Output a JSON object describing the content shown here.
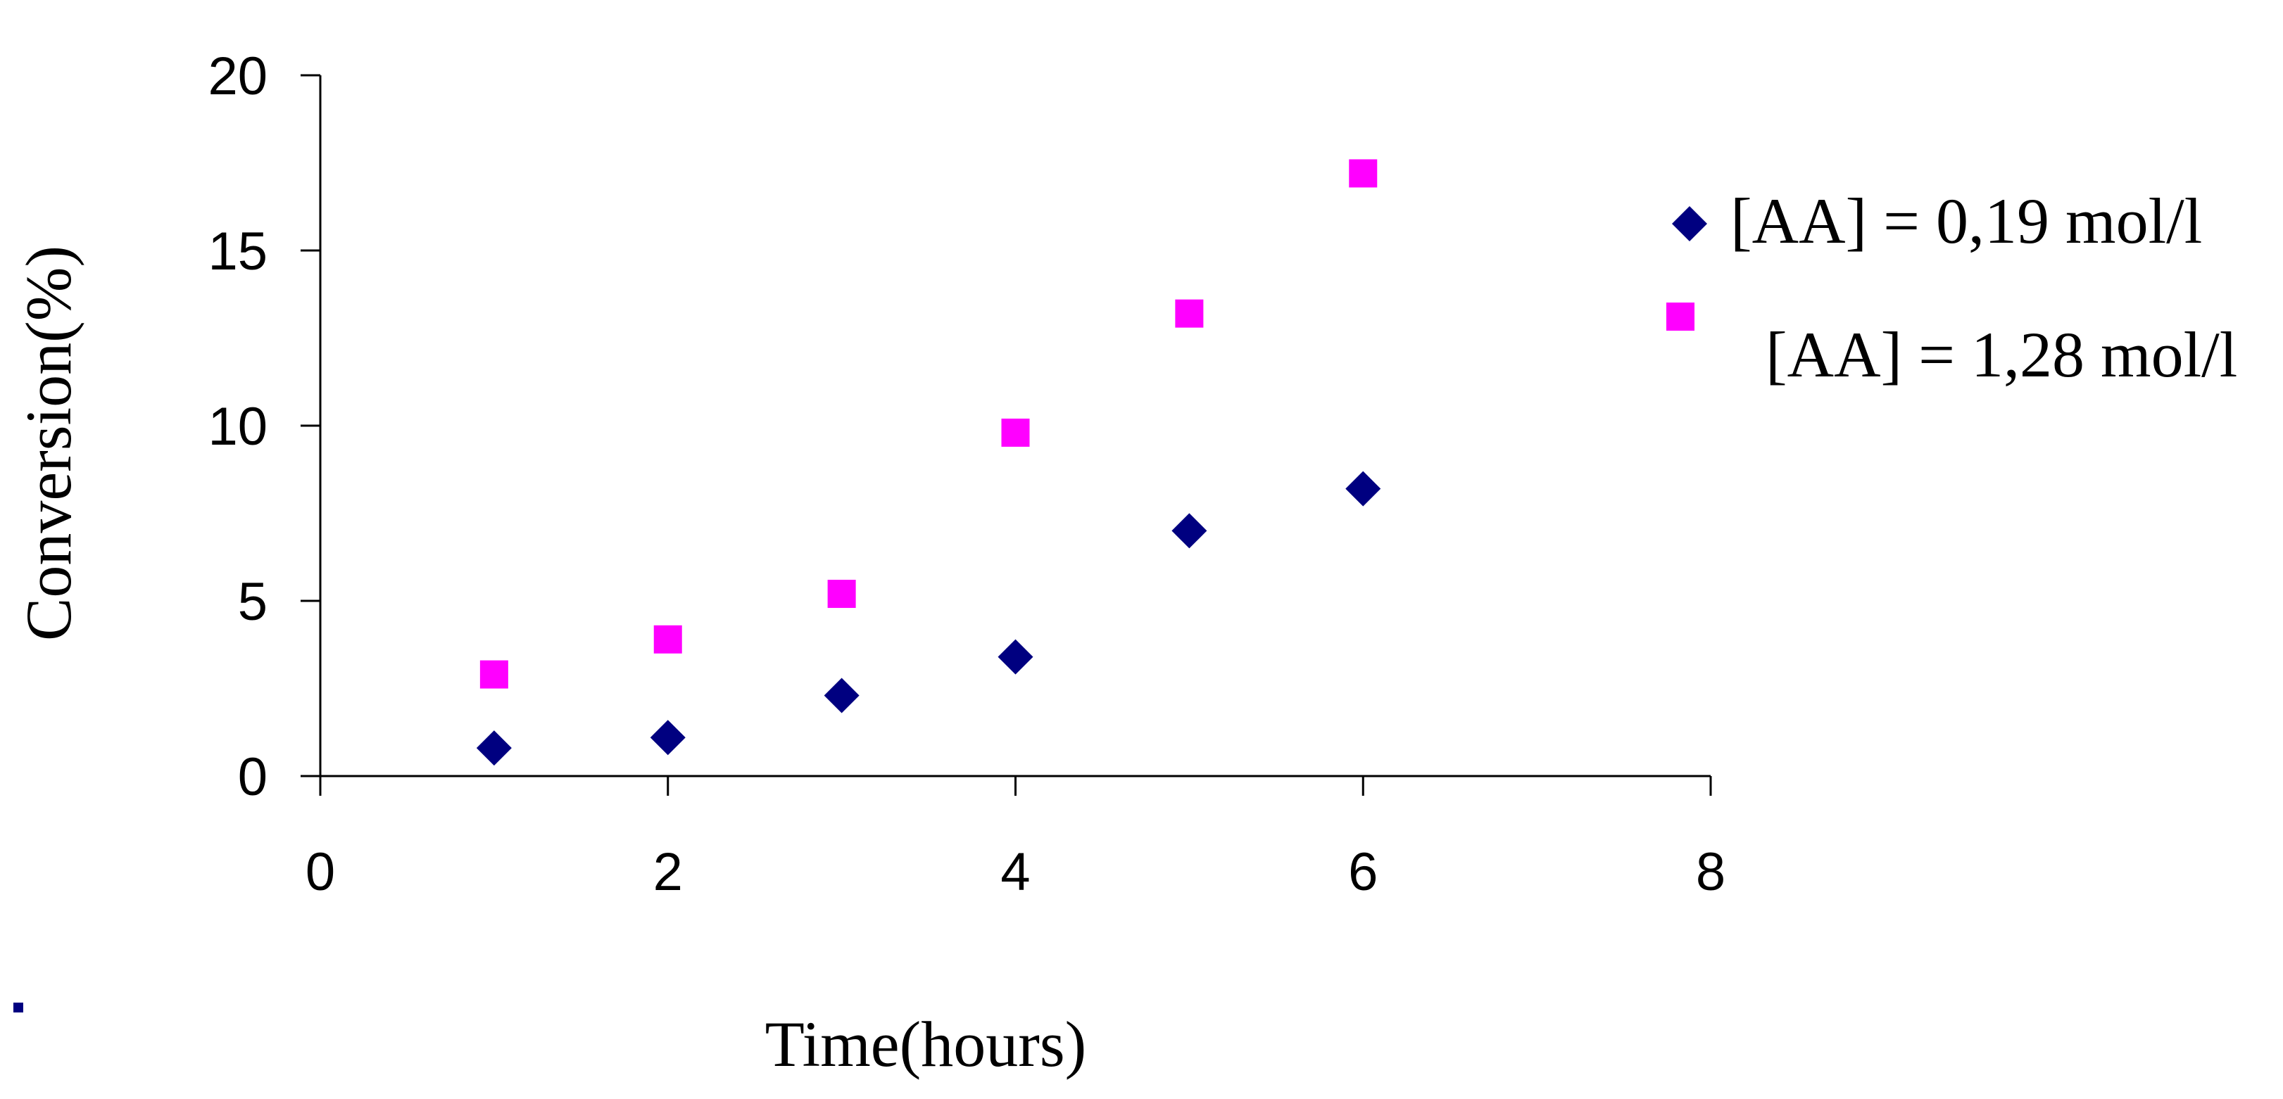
{
  "chart_data": {
    "type": "scatter",
    "title": "",
    "xlabel": "Time(hours)",
    "ylabel": "Conversion(%)",
    "xlim": [
      0,
      8
    ],
    "ylim": [
      0,
      20
    ],
    "xticks": [
      0,
      2,
      4,
      6,
      8
    ],
    "yticks": [
      0,
      5,
      10,
      15,
      20
    ],
    "grid": false,
    "legend_position": "right",
    "series": [
      {
        "name": "[AA] = 0,19 mol/l",
        "marker": "diamond",
        "color": "#000080",
        "x": [
          1,
          2,
          3,
          4,
          5,
          6
        ],
        "y": [
          0.8,
          1.1,
          2.3,
          3.4,
          7.0,
          8.2
        ]
      },
      {
        "name": "[AA] = 1,28 mol/l",
        "marker": "square",
        "color": "#FF00FF",
        "x": [
          1,
          2,
          3,
          4,
          5,
          6
        ],
        "y": [
          2.9,
          3.9,
          5.2,
          9.8,
          13.2,
          17.2
        ]
      }
    ]
  }
}
